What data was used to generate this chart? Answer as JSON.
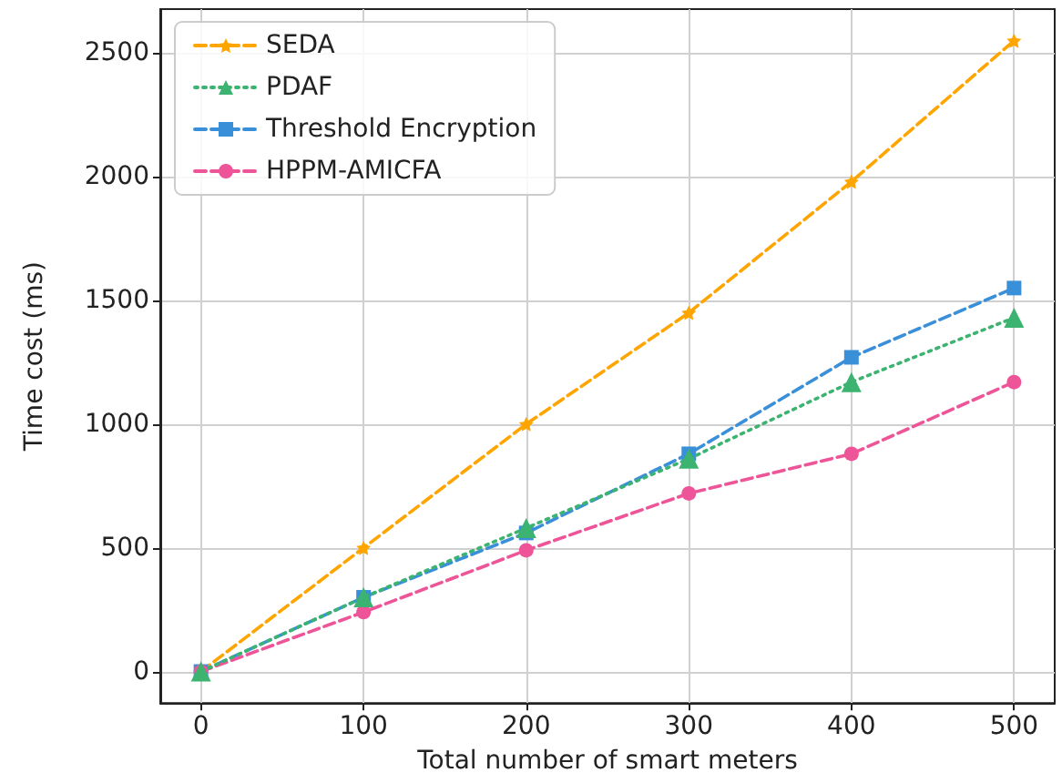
{
  "chart_data": {
    "type": "line",
    "xlabel": "Total number of smart meters",
    "ylabel": "Time cost (ms)",
    "x": [
      0,
      100,
      200,
      300,
      400,
      500
    ],
    "series": [
      {
        "name": "SEDA",
        "color": "#ffa500",
        "marker": "star",
        "line_style": "dashed",
        "values": [
          0,
          500,
          1000,
          1450,
          1980,
          2550
        ]
      },
      {
        "name": "PDAF",
        "color": "#3cb371",
        "marker": "triangle",
        "line_style": "dotted",
        "values": [
          0,
          300,
          580,
          860,
          1170,
          1430
        ]
      },
      {
        "name": "Threshold Encryption",
        "color": "#3a8fd9",
        "marker": "square",
        "line_style": "dashed",
        "values": [
          0,
          300,
          560,
          880,
          1270,
          1550
        ]
      },
      {
        "name": "HPPM-AMICFA",
        "color": "#ee5599",
        "marker": "circle",
        "line_style": "dashed",
        "values": [
          0,
          240,
          490,
          720,
          880,
          1170
        ]
      }
    ],
    "xlim": [
      -25,
      525
    ],
    "xticks": [
      0,
      100,
      200,
      300,
      400,
      500
    ],
    "ylim": [
      -127.5,
      2677.5
    ],
    "yticks": [
      0,
      500,
      1000,
      1500,
      2000,
      2500
    ],
    "grid": true,
    "legend": "top left"
  }
}
